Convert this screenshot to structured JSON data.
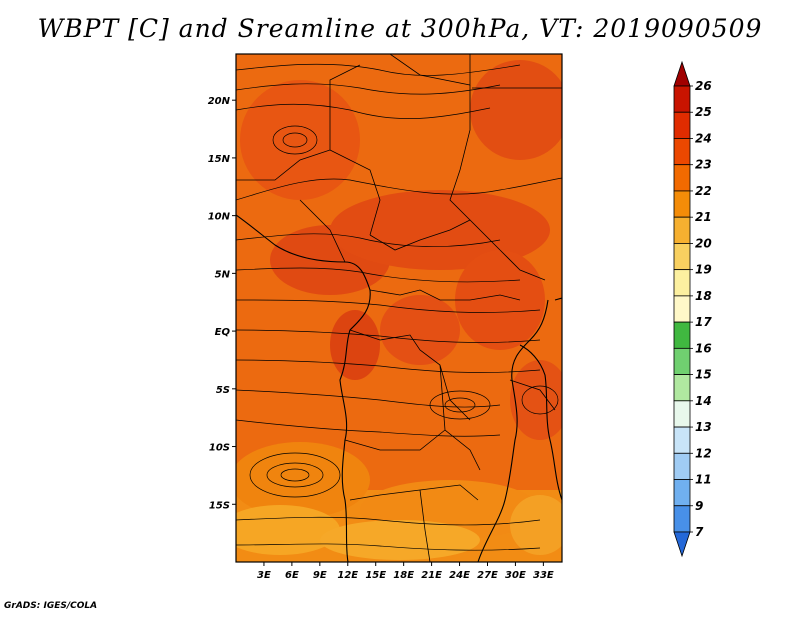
{
  "title": "WBPT [C] and Sreamline at 300hPa, VT: 2019090509",
  "credit": "GrADS: IGES/COLA",
  "map": {
    "lon_range": [
      0,
      35
    ],
    "lat_range": [
      -20,
      24
    ],
    "lat_ticks": [
      "20N",
      "15N",
      "10N",
      "5N",
      "EQ",
      "5S",
      "10S",
      "15S"
    ],
    "lat_values": [
      20,
      15,
      10,
      5,
      0,
      -5,
      -10,
      -15
    ],
    "lon_ticks": [
      "3E",
      "6E",
      "9E",
      "12E",
      "15E",
      "18E",
      "21E",
      "24E",
      "27E",
      "30E",
      "33E"
    ],
    "lon_values": [
      3,
      6,
      9,
      12,
      15,
      18,
      21,
      24,
      27,
      30,
      33
    ]
  },
  "colorbar": {
    "labels": [
      "26",
      "25",
      "24",
      "23",
      "22",
      "21",
      "20",
      "19",
      "18",
      "17",
      "16",
      "15",
      "14",
      "13",
      "12",
      "11",
      "9",
      "7"
    ],
    "colors": [
      "#a00000",
      "#c81400",
      "#e02c00",
      "#ec4800",
      "#f26a00",
      "#f48c08",
      "#f6b030",
      "#f8d060",
      "#fcf0a0",
      "#fff8c8",
      "#40b840",
      "#70d070",
      "#b0e8a0",
      "#e8f8ec",
      "#c8e4f8",
      "#a0ccf4",
      "#70b0f0",
      "#4890e8",
      "#2468d8"
    ]
  }
}
